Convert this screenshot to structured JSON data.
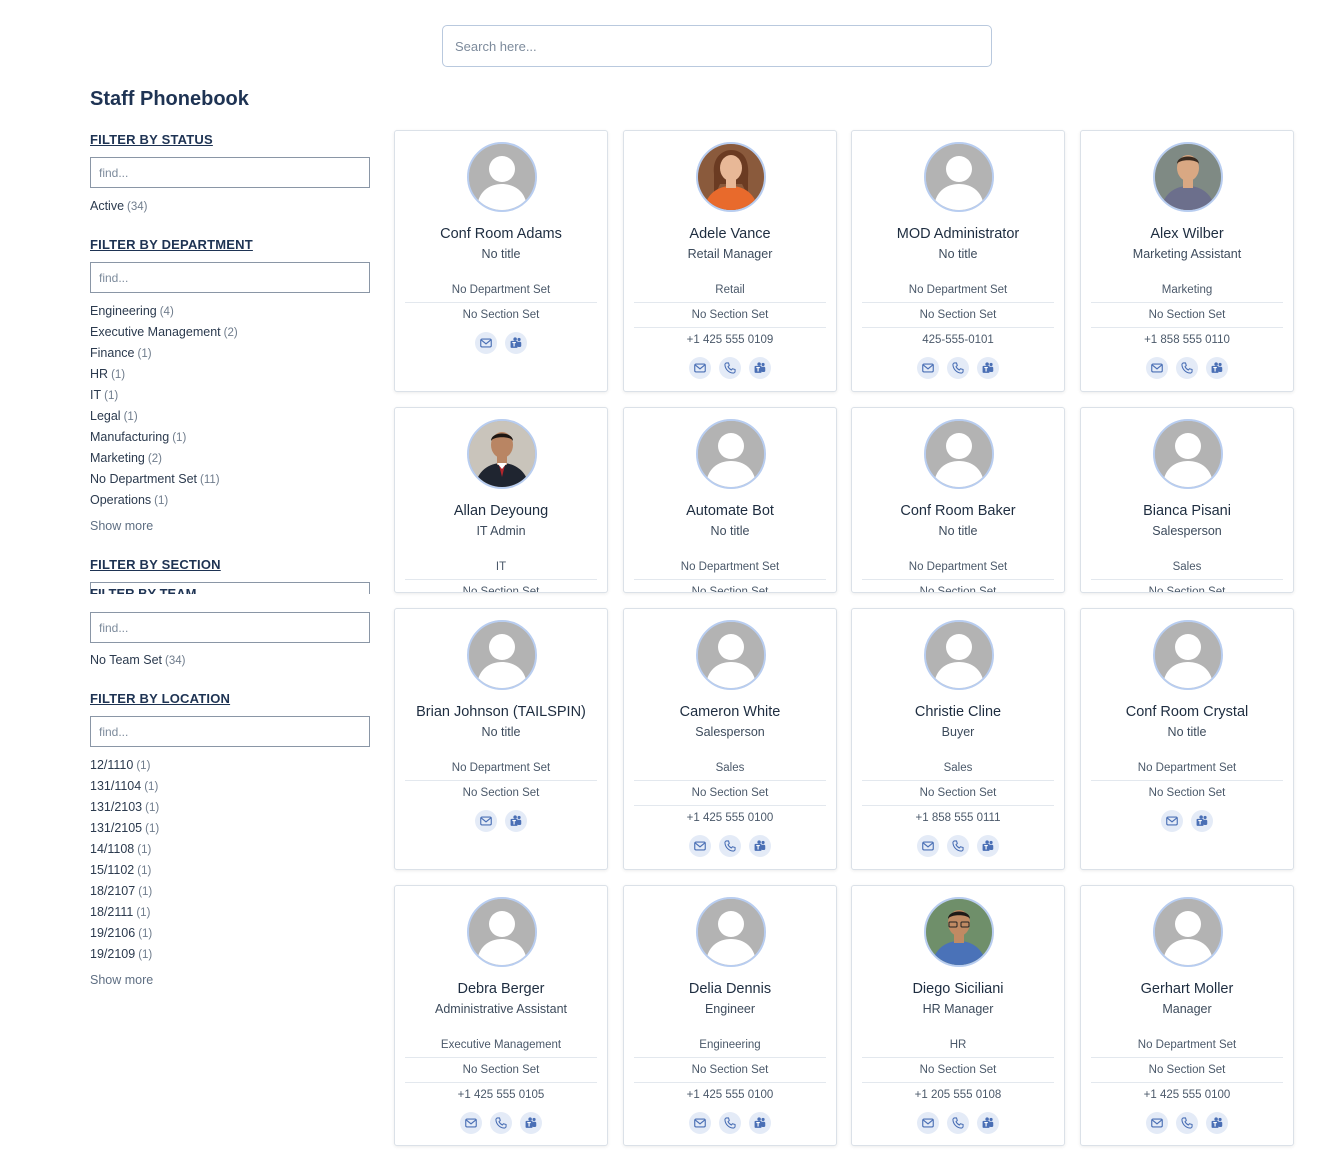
{
  "search": {
    "placeholder": "Search here..."
  },
  "page_title": "Staff Phonebook",
  "filters": {
    "status": {
      "heading": "FILTER BY STATUS",
      "placeholder": "find...",
      "items": [
        {
          "label": "Active",
          "count": "(34)"
        }
      ]
    },
    "department": {
      "heading": "FILTER BY DEPARTMENT",
      "placeholder": "find...",
      "items": [
        {
          "label": "Engineering",
          "count": "(4)"
        },
        {
          "label": "Executive Management",
          "count": "(2)"
        },
        {
          "label": "Finance",
          "count": "(1)"
        },
        {
          "label": "HR",
          "count": "(1)"
        },
        {
          "label": "IT",
          "count": "(1)"
        },
        {
          "label": "Legal",
          "count": "(1)"
        },
        {
          "label": "Manufacturing",
          "count": "(1)"
        },
        {
          "label": "Marketing",
          "count": "(2)"
        },
        {
          "label": "No Department Set",
          "count": "(11)"
        },
        {
          "label": "Operations",
          "count": "(1)"
        }
      ],
      "show_more": "Show more"
    },
    "section": {
      "heading": "FILTER BY SECTION"
    },
    "team": {
      "heading": "FILTER BY TEAM",
      "placeholder": "find...",
      "items": [
        {
          "label": "No Team Set",
          "count": "(34)"
        }
      ]
    },
    "location": {
      "heading": "FILTER BY LOCATION",
      "placeholder": "find...",
      "items": [
        {
          "label": "12/1110",
          "count": "(1)"
        },
        {
          "label": "131/1104",
          "count": "(1)"
        },
        {
          "label": "131/2103",
          "count": "(1)"
        },
        {
          "label": "131/2105",
          "count": "(1)"
        },
        {
          "label": "14/1108",
          "count": "(1)"
        },
        {
          "label": "15/1102",
          "count": "(1)"
        },
        {
          "label": "18/2107",
          "count": "(1)"
        },
        {
          "label": "18/2111",
          "count": "(1)"
        },
        {
          "label": "19/2106",
          "count": "(1)"
        },
        {
          "label": "19/2109",
          "count": "(1)"
        }
      ],
      "show_more": "Show more"
    }
  },
  "cards": [
    {
      "name": "Conf Room Adams",
      "title": "No title",
      "department": "No Department Set",
      "section": "No Section Set",
      "phone": "",
      "photo": "placeholder",
      "actions": [
        "mail-icon",
        "teams-icon"
      ]
    },
    {
      "name": "Adele Vance",
      "title": "Retail Manager",
      "department": "Retail",
      "section": "No Section Set",
      "phone": "+1 425 555 0109",
      "photo": "photo-woman",
      "actions": [
        "mail-icon",
        "phone-icon",
        "teams-icon"
      ]
    },
    {
      "name": "MOD Administrator",
      "title": "No title",
      "department": "No Department Set",
      "section": "No Section Set",
      "phone": "425-555-0101",
      "photo": "placeholder",
      "actions": [
        "mail-icon",
        "phone-icon",
        "teams-icon"
      ]
    },
    {
      "name": "Alex Wilber",
      "title": "Marketing Assistant",
      "department": "Marketing",
      "section": "No Section Set",
      "phone": "+1 858 555 0110",
      "photo": "photo-man",
      "actions": [
        "mail-icon",
        "phone-icon",
        "teams-icon"
      ]
    },
    {
      "name": "Allan Deyoung",
      "title": "IT Admin",
      "department": "IT",
      "section": "No Section Set",
      "phone": "",
      "photo": "photo-man-suit",
      "actions": []
    },
    {
      "name": "Automate Bot",
      "title": "No title",
      "department": "No Department Set",
      "section": "No Section Set",
      "phone": "",
      "photo": "placeholder",
      "actions": []
    },
    {
      "name": "Conf Room Baker",
      "title": "No title",
      "department": "No Department Set",
      "section": "No Section Set",
      "phone": "",
      "photo": "placeholder",
      "actions": []
    },
    {
      "name": "Bianca Pisani",
      "title": "Salesperson",
      "department": "Sales",
      "section": "No Section Set",
      "phone": "",
      "photo": "placeholder",
      "actions": []
    },
    {
      "name": "Brian Johnson (TAILSPIN)",
      "title": "No title",
      "department": "No Department Set",
      "section": "No Section Set",
      "phone": "",
      "photo": "placeholder",
      "actions": [
        "mail-icon",
        "teams-icon"
      ]
    },
    {
      "name": "Cameron White",
      "title": "Salesperson",
      "department": "Sales",
      "section": "No Section Set",
      "phone": "+1 425 555 0100",
      "photo": "placeholder",
      "actions": [
        "mail-icon",
        "phone-icon",
        "teams-icon"
      ]
    },
    {
      "name": "Christie Cline",
      "title": "Buyer",
      "department": "Sales",
      "section": "No Section Set",
      "phone": "+1 858 555 0111",
      "photo": "placeholder",
      "actions": [
        "mail-icon",
        "phone-icon",
        "teams-icon"
      ]
    },
    {
      "name": "Conf Room Crystal",
      "title": "No title",
      "department": "No Department Set",
      "section": "No Section Set",
      "phone": "",
      "photo": "placeholder",
      "actions": [
        "mail-icon",
        "teams-icon"
      ]
    },
    {
      "name": "Debra Berger",
      "title": "Administrative Assistant",
      "department": "Executive Management",
      "section": "No Section Set",
      "phone": "+1 425 555 0105",
      "photo": "placeholder",
      "actions": [
        "mail-icon",
        "phone-icon",
        "teams-icon"
      ]
    },
    {
      "name": "Delia Dennis",
      "title": "Engineer",
      "department": "Engineering",
      "section": "No Section Set",
      "phone": "+1 425 555 0100",
      "photo": "placeholder",
      "actions": [
        "mail-icon",
        "phone-icon",
        "teams-icon"
      ]
    },
    {
      "name": "Diego Siciliani",
      "title": "HR Manager",
      "department": "HR",
      "section": "No Section Set",
      "phone": "+1 205 555 0108",
      "photo": "photo-man-glasses",
      "actions": [
        "mail-icon",
        "phone-icon",
        "teams-icon"
      ]
    },
    {
      "name": "Gerhart Moller",
      "title": "Manager",
      "department": "No Department Set",
      "section": "No Section Set",
      "phone": "+1 425 555 0100",
      "photo": "placeholder",
      "actions": [
        "mail-icon",
        "phone-icon",
        "teams-icon"
      ]
    }
  ],
  "colors": {
    "accent": "#1e3353",
    "icon": "#4a6fb5",
    "icon_bg": "#e4ebf7",
    "avatar_ring": "#b8cdf0",
    "placeholder": "#b3b3b3"
  }
}
